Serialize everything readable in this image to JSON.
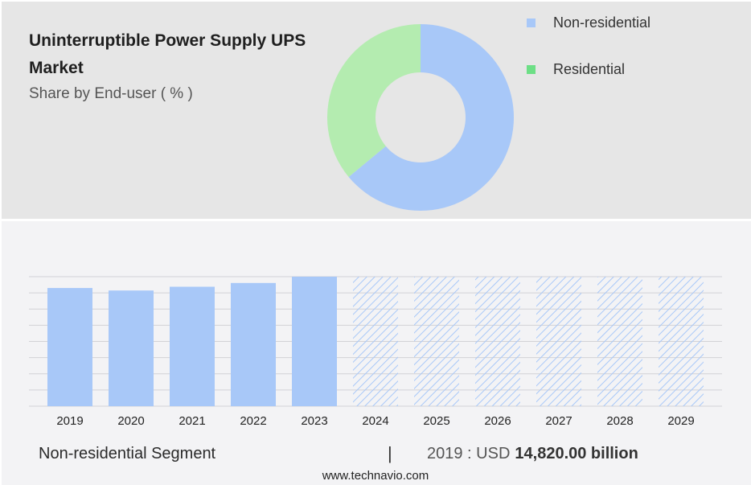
{
  "header": {
    "title": "Uninterruptible Power Supply UPS Market",
    "subtitle": "Share by End-user ( % )"
  },
  "colors": {
    "non_residential": "#a8c8f8",
    "residential": "#b4ecb0",
    "residential_legend": "#6ddf86",
    "hatch": "#a8c8f8"
  },
  "chart_data": [
    {
      "type": "pie",
      "donut": true,
      "categories": [
        "Non-residential",
        "Residential"
      ],
      "values": [
        64,
        36
      ]
    },
    {
      "type": "bar",
      "categories": [
        "2019",
        "2020",
        "2021",
        "2022",
        "2023",
        "2024",
        "2025",
        "2026",
        "2027",
        "2028",
        "2029"
      ],
      "values": [
        94,
        92,
        95,
        98,
        103,
        null,
        null,
        null,
        null,
        null,
        null
      ],
      "forecast_categories": [
        "2024",
        "2025",
        "2026",
        "2027",
        "2028",
        "2029"
      ],
      "ylim": [
        0,
        103
      ],
      "grid": true
    }
  ],
  "footer": {
    "segment": "Non-residential Segment",
    "separator": "|",
    "year_label": "2019 : USD",
    "value": "14,820.00 billion",
    "source": "www.technavio.com"
  }
}
